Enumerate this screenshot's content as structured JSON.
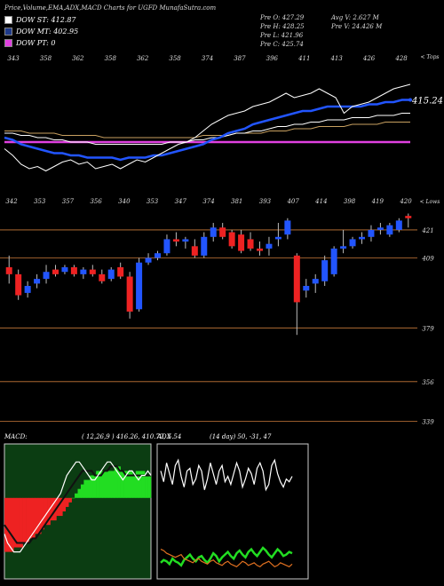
{
  "header": {
    "title": "Price,Volume,EMA,ADX,MACD Charts for UGFD MunafaSutra.com",
    "stats": {
      "open": "Pre  O: 427.29",
      "high": "Pre  H: 428.25",
      "low": "Pre  L: 421.96",
      "close": "Pre  C: 425.74",
      "avg_vol": "Avg V: 2.627  M",
      "pre_vol": "Pre  V: 24.426  M"
    }
  },
  "legend": [
    {
      "label": "DOW ST: 412.87",
      "color": "#ffffff"
    },
    {
      "label": "DOW MT: 402.95",
      "color": "#1e3a8a"
    },
    {
      "label": "DOW PT: 0",
      "color": "#e040e0"
    }
  ],
  "chart_data": [
    {
      "type": "line",
      "panel": "ema",
      "top_tick_labels": [
        "343",
        "358",
        "362",
        "358",
        "362",
        "358",
        "374",
        "387",
        "396",
        "411",
        "413",
        "426",
        "428"
      ],
      "right_title": "< Tops",
      "price_label": "415.24",
      "series": [
        {
          "name": "price",
          "color": "#ffffff",
          "values": [
            393,
            390,
            386,
            384,
            385,
            383,
            385,
            387,
            388,
            386,
            387,
            384,
            385,
            386,
            384,
            386,
            388,
            387,
            389,
            391,
            393,
            395,
            396,
            398,
            401,
            404,
            406,
            408,
            409,
            410,
            412,
            413,
            414,
            416,
            418,
            416,
            417,
            418,
            420,
            418,
            416,
            409,
            412,
            413,
            414,
            416,
            418,
            420,
            421,
            422
          ]
        },
        {
          "name": "ema_fast",
          "color": "#2255ff",
          "values": [
            398,
            397,
            395,
            394,
            393,
            392,
            391,
            391,
            390,
            390,
            389,
            389,
            389,
            389,
            388,
            389,
            389,
            389,
            390,
            390,
            391,
            392,
            393,
            394,
            395,
            397,
            398,
            400,
            401,
            402,
            404,
            405,
            406,
            407,
            408,
            409,
            410,
            410,
            411,
            412,
            412,
            412,
            412,
            412,
            413,
            413,
            414,
            414,
            415,
            415
          ]
        },
        {
          "name": "ema_mid",
          "color": "#ffffff",
          "values": [
            400,
            400,
            399,
            399,
            398,
            398,
            397,
            397,
            396,
            396,
            396,
            395,
            395,
            395,
            395,
            395,
            395,
            395,
            395,
            395,
            396,
            396,
            396,
            397,
            397,
            398,
            398,
            399,
            400,
            400,
            401,
            401,
            402,
            403,
            403,
            404,
            404,
            405,
            405,
            406,
            406,
            406,
            407,
            407,
            407,
            408,
            408,
            408,
            409,
            409
          ]
        },
        {
          "name": "ema_slow",
          "color": "#c8a060",
          "values": [
            401,
            401,
            401,
            400,
            400,
            400,
            400,
            399,
            399,
            399,
            399,
            399,
            398,
            398,
            398,
            398,
            398,
            398,
            398,
            398,
            398,
            398,
            398,
            398,
            399,
            399,
            399,
            399,
            400,
            400,
            400,
            400,
            401,
            401,
            401,
            402,
            402,
            402,
            403,
            403,
            403,
            403,
            404,
            404,
            404,
            404,
            405,
            405,
            405,
            405
          ]
        },
        {
          "name": "dow_pt_line",
          "color": "#e040e0",
          "values": [
            396,
            396,
            396,
            396,
            396,
            396,
            396,
            396,
            396,
            396,
            396,
            396,
            396,
            396,
            396,
            396,
            396,
            396,
            396,
            396,
            396,
            396,
            396,
            396,
            396,
            396,
            396,
            396,
            396,
            396,
            396,
            396,
            396,
            396,
            396,
            396,
            396,
            396,
            396,
            396,
            396,
            396,
            396,
            396,
            396,
            396,
            396,
            396,
            396,
            396
          ]
        }
      ],
      "ylim": [
        380,
        430
      ]
    },
    {
      "type": "candlestick",
      "panel": "price",
      "top_tick_labels": [
        "342",
        "353",
        "357",
        "356",
        "340",
        "353",
        "347",
        "374",
        "381",
        "393",
        "407",
        "414",
        "398",
        "419",
        "420"
      ],
      "right_title": "< Lows",
      "right_labels": [
        "421",
        "409",
        "379",
        "356",
        "339"
      ],
      "right_label_values": [
        421,
        409,
        379,
        356,
        339
      ],
      "candles": [
        {
          "o": 405,
          "h": 410,
          "l": 398,
          "c": 402
        },
        {
          "o": 402,
          "h": 404,
          "l": 391,
          "c": 393
        },
        {
          "o": 394,
          "h": 399,
          "l": 392,
          "c": 397
        },
        {
          "o": 398,
          "h": 402,
          "l": 396,
          "c": 400
        },
        {
          "o": 400,
          "h": 406,
          "l": 398,
          "c": 403
        },
        {
          "o": 404,
          "h": 406,
          "l": 401,
          "c": 402
        },
        {
          "o": 403,
          "h": 406,
          "l": 402,
          "c": 405
        },
        {
          "o": 405,
          "h": 406,
          "l": 401,
          "c": 402
        },
        {
          "o": 402,
          "h": 405,
          "l": 400,
          "c": 404
        },
        {
          "o": 404,
          "h": 406,
          "l": 401,
          "c": 402
        },
        {
          "o": 402,
          "h": 404,
          "l": 398,
          "c": 399
        },
        {
          "o": 400,
          "h": 405,
          "l": 399,
          "c": 404
        },
        {
          "o": 405,
          "h": 407,
          "l": 400,
          "c": 401
        },
        {
          "o": 401,
          "h": 403,
          "l": 383,
          "c": 386
        },
        {
          "o": 387,
          "h": 409,
          "l": 386,
          "c": 407
        },
        {
          "o": 407,
          "h": 411,
          "l": 406,
          "c": 409
        },
        {
          "o": 409,
          "h": 412,
          "l": 408,
          "c": 411
        },
        {
          "o": 411,
          "h": 419,
          "l": 410,
          "c": 417
        },
        {
          "o": 417,
          "h": 420,
          "l": 414,
          "c": 416
        },
        {
          "o": 416,
          "h": 418,
          "l": 413,
          "c": 417
        },
        {
          "o": 414,
          "h": 417,
          "l": 409,
          "c": 410
        },
        {
          "o": 410,
          "h": 420,
          "l": 409,
          "c": 418
        },
        {
          "o": 418,
          "h": 424,
          "l": 416,
          "c": 422
        },
        {
          "o": 422,
          "h": 424,
          "l": 417,
          "c": 418
        },
        {
          "o": 420,
          "h": 421,
          "l": 413,
          "c": 414
        },
        {
          "o": 419,
          "h": 421,
          "l": 411,
          "c": 412
        },
        {
          "o": 417,
          "h": 420,
          "l": 412,
          "c": 413
        },
        {
          "o": 413,
          "h": 416,
          "l": 410,
          "c": 412
        },
        {
          "o": 413,
          "h": 418,
          "l": 410,
          "c": 415
        },
        {
          "o": 417,
          "h": 424,
          "l": 414,
          "c": 418
        },
        {
          "o": 419,
          "h": 426,
          "l": 417,
          "c": 425
        },
        {
          "o": 410,
          "h": 411,
          "l": 376,
          "c": 390
        },
        {
          "o": 395,
          "h": 400,
          "l": 392,
          "c": 397
        },
        {
          "o": 398,
          "h": 402,
          "l": 394,
          "c": 400
        },
        {
          "o": 399,
          "h": 410,
          "l": 397,
          "c": 408
        },
        {
          "o": 402,
          "h": 414,
          "l": 401,
          "c": 413
        },
        {
          "o": 413,
          "h": 421,
          "l": 411,
          "c": 414
        },
        {
          "o": 414,
          "h": 418,
          "l": 413,
          "c": 417
        },
        {
          "o": 417,
          "h": 420,
          "l": 415,
          "c": 418
        },
        {
          "o": 418,
          "h": 423,
          "l": 416,
          "c": 421
        },
        {
          "o": 421,
          "h": 424,
          "l": 419,
          "c": 422
        },
        {
          "o": 419,
          "h": 424,
          "l": 418,
          "c": 423
        },
        {
          "o": 421,
          "h": 426,
          "l": 420,
          "c": 425
        },
        {
          "o": 427,
          "h": 428,
          "l": 422,
          "c": 426
        }
      ],
      "ylim": [
        335,
        432
      ],
      "colors": {
        "up": "#2255ff",
        "down": "#ee2222"
      }
    },
    {
      "type": "area",
      "panel": "macd",
      "title": "MACD:",
      "value_text": "( 12,26,9 ) 416.26, 410.72, 5.54",
      "histogram": [
        -12,
        -12,
        -12,
        -11,
        -11,
        -11,
        -10,
        -10,
        -9,
        -9,
        -8,
        -8,
        -7,
        -6,
        -6,
        -5,
        -5,
        -4,
        -4,
        -3,
        -2,
        -1,
        0,
        1,
        2,
        3,
        4,
        4,
        5,
        5,
        6,
        6,
        6,
        6,
        6,
        6,
        7,
        7,
        6,
        6,
        6,
        6,
        5,
        6,
        6,
        6,
        5,
        5
      ],
      "macd_line": [
        -8,
        -10,
        -11,
        -12,
        -12,
        -12,
        -11,
        -10,
        -9,
        -8,
        -7,
        -6,
        -5,
        -4,
        -3,
        -2,
        -1,
        0,
        1,
        3,
        5,
        6,
        7,
        8,
        8,
        7,
        6,
        5,
        4,
        4,
        5,
        6,
        7,
        8,
        8,
        7,
        6,
        5,
        4,
        5,
        6,
        6,
        5,
        4,
        5,
        5,
        6,
        5
      ],
      "signal_line": [
        -6,
        -7,
        -8,
        -9,
        -10,
        -10,
        -10,
        -10,
        -10,
        -9,
        -9,
        -8,
        -7,
        -6,
        -5,
        -4,
        -3,
        -2,
        -1,
        0,
        1,
        2,
        3,
        4,
        5,
        6,
        6,
        6,
        6,
        5,
        5,
        5,
        6,
        6,
        7,
        7,
        7,
        6,
        6,
        5,
        5,
        5,
        5,
        5,
        5,
        5,
        5,
        5
      ],
      "ylim": [
        -18,
        12
      ],
      "colors": {
        "pos": "#22dd22",
        "neg": "#ee2222",
        "macd": "#ffffff",
        "signal": "#111111"
      }
    },
    {
      "type": "line",
      "panel": "adx",
      "title": "ADX",
      "value_text": "(14 day) 50,  -31,  47",
      "series": [
        {
          "name": "adx_main",
          "color": "#ffffff",
          "values": [
            80,
            72,
            86,
            78,
            70,
            84,
            88,
            76,
            68,
            80,
            82,
            70,
            74,
            84,
            80,
            66,
            74,
            86,
            78,
            70,
            80,
            84,
            72,
            76,
            70,
            78,
            86,
            80,
            68,
            74,
            82,
            78,
            70,
            82,
            86,
            80,
            66,
            70,
            84,
            88,
            78,
            72,
            68,
            74,
            72,
            76
          ]
        },
        {
          "name": "adx_green",
          "color": "#22dd22",
          "values": [
            12,
            14,
            13,
            11,
            15,
            13,
            12,
            10,
            14,
            16,
            18,
            15,
            13,
            16,
            17,
            14,
            12,
            15,
            19,
            17,
            13,
            16,
            18,
            20,
            17,
            15,
            19,
            21,
            18,
            16,
            20,
            22,
            19,
            17,
            20,
            23,
            21,
            18,
            16,
            19,
            22,
            20,
            17,
            18,
            20,
            19
          ]
        },
        {
          "name": "adx_orange",
          "color": "#e07020",
          "values": [
            22,
            21,
            19,
            18,
            17,
            16,
            17,
            18,
            15,
            14,
            13,
            12,
            14,
            15,
            13,
            12,
            11,
            13,
            14,
            12,
            11,
            10,
            12,
            13,
            11,
            10,
            9,
            11,
            13,
            12,
            10,
            11,
            12,
            10,
            9,
            11,
            12,
            13,
            11,
            9,
            10,
            12,
            11,
            10,
            9,
            11
          ]
        }
      ],
      "ylim": [
        0,
        100
      ]
    }
  ]
}
